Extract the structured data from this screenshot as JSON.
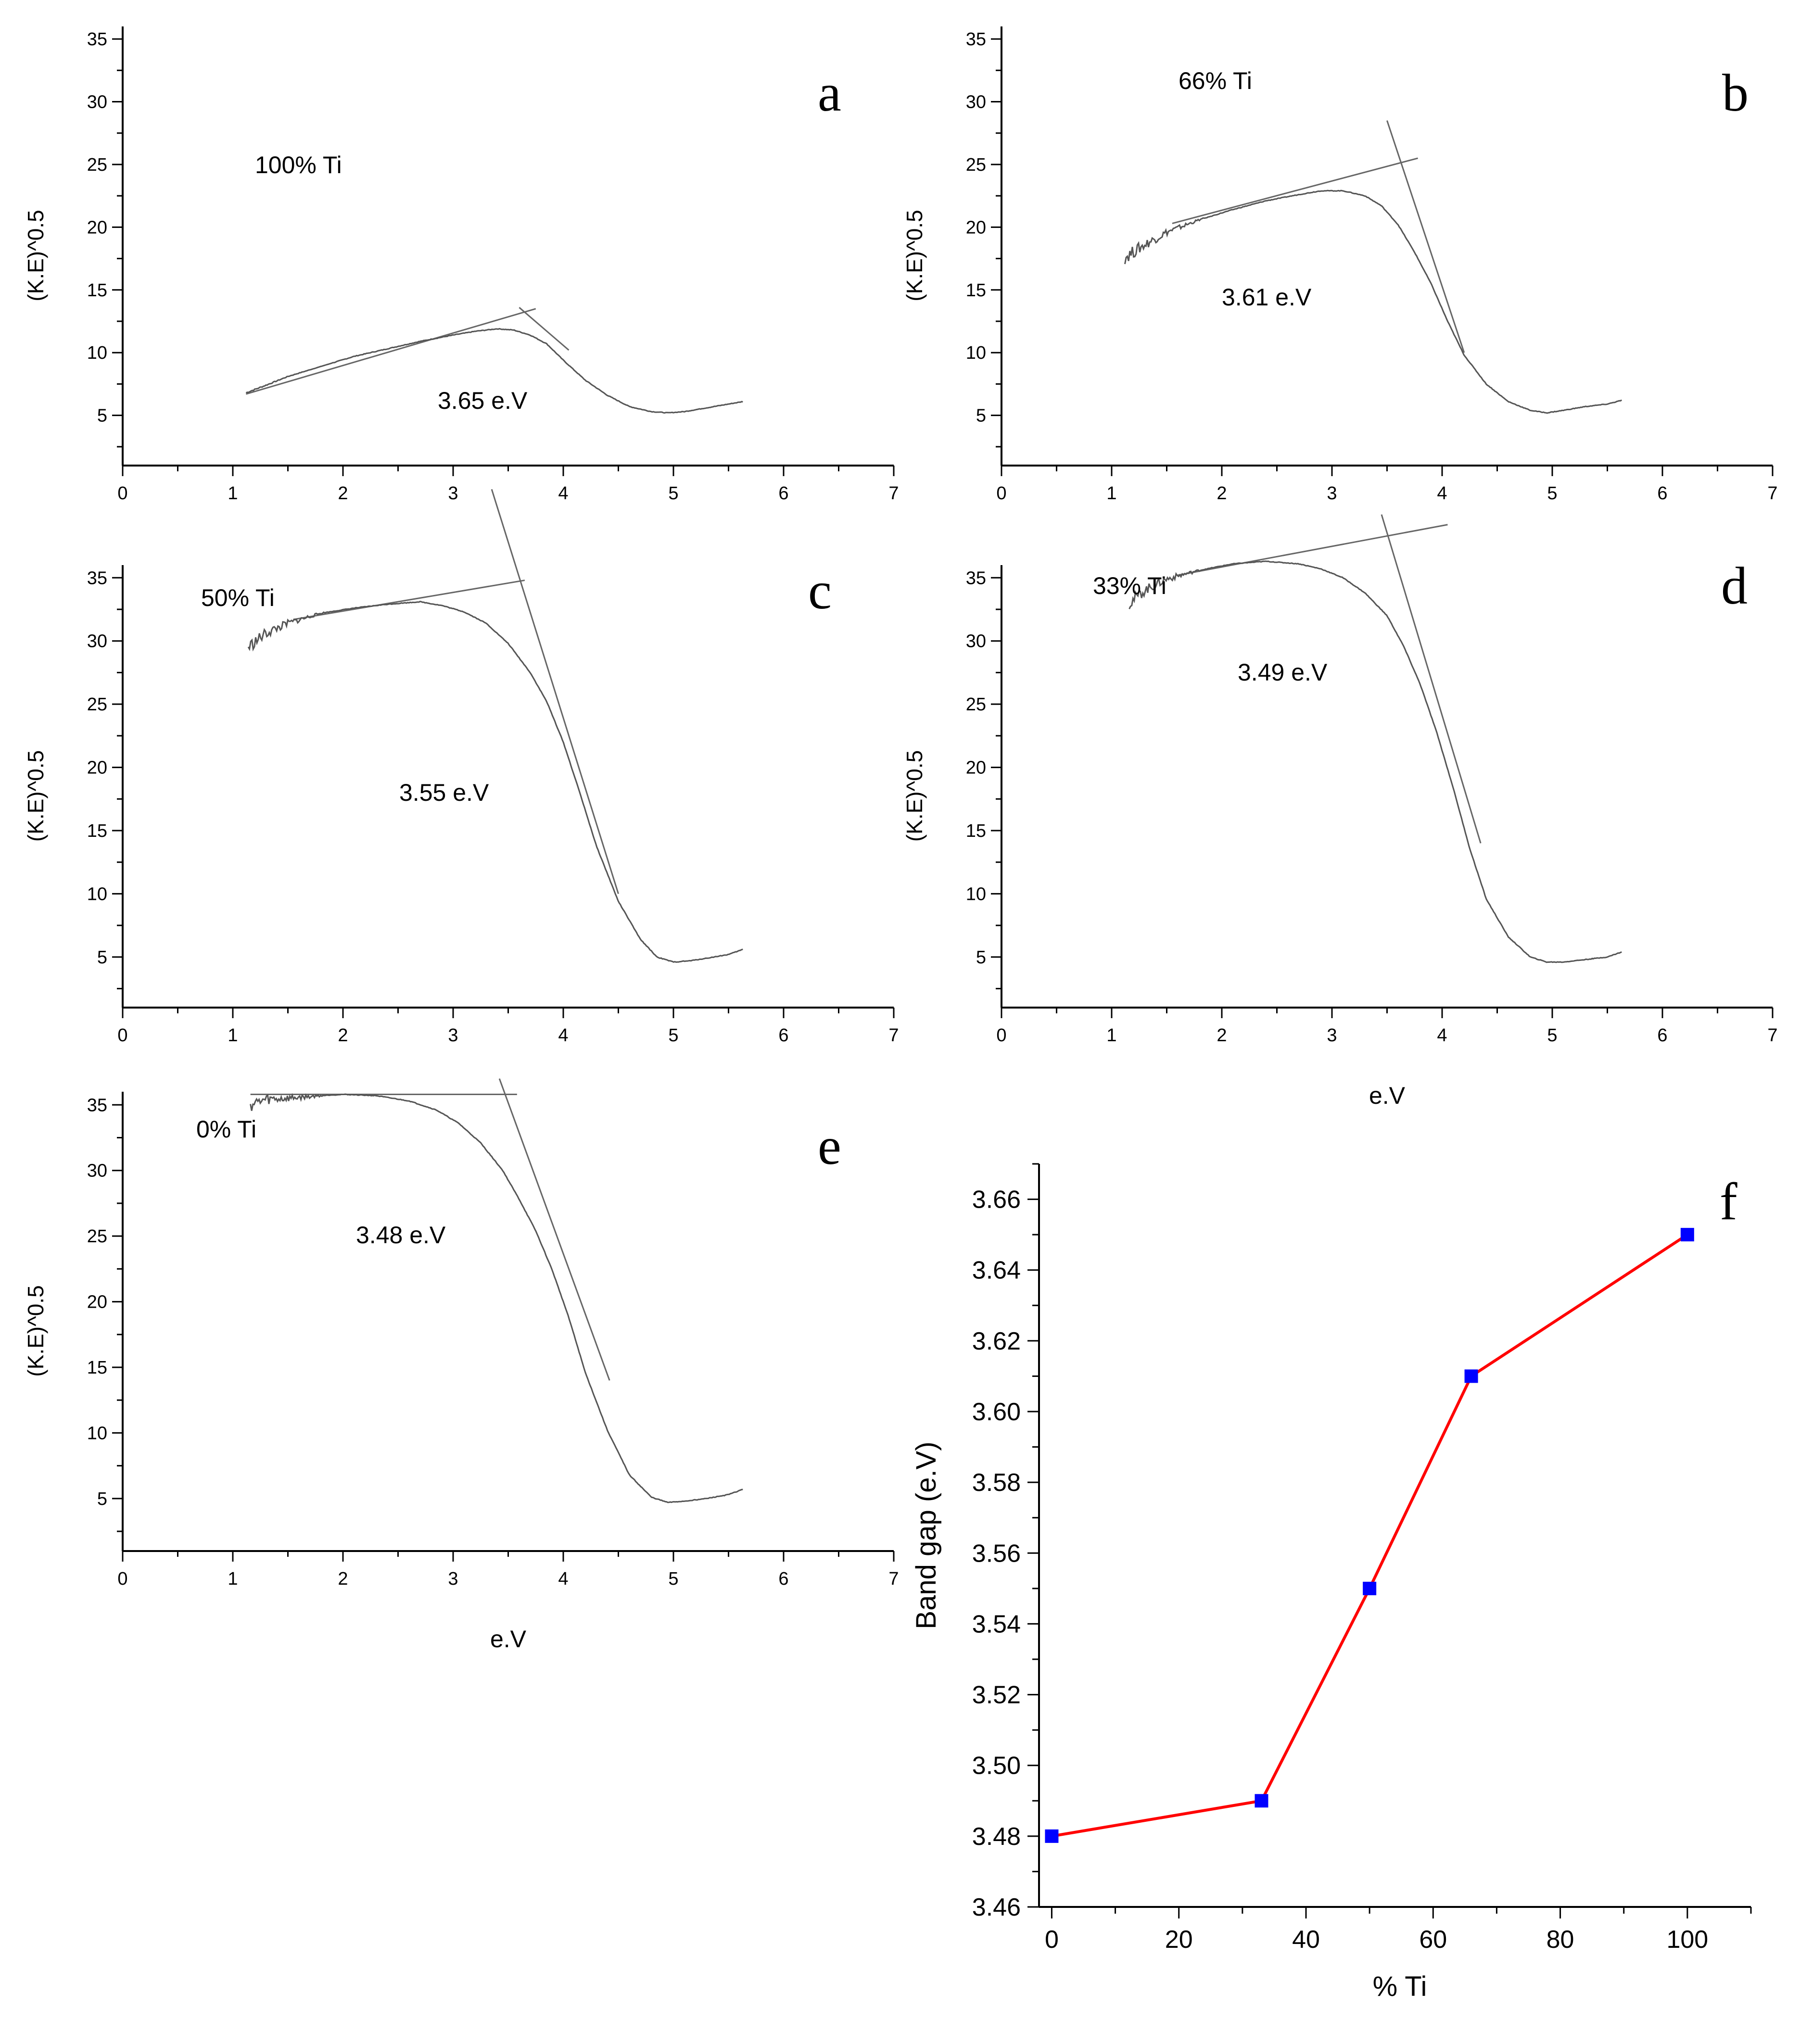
{
  "figure": {
    "panels": [
      "a",
      "b",
      "c",
      "d",
      "e",
      "f"
    ]
  },
  "colors": {
    "axis": "#000000",
    "trace": "#555555",
    "tangent": "#666666",
    "band_line": "#ff0000",
    "band_marker": "#0000ff"
  },
  "chart_data": [
    {
      "id": "a",
      "type": "line",
      "panel_letter": "a",
      "ylabel": "(K.E)^0.5",
      "xlabel": "",
      "xlim": [
        0,
        7
      ],
      "ylim": [
        1,
        36
      ],
      "xticks": [
        "0",
        "1",
        "2",
        "3",
        "4",
        "5",
        "6",
        "7"
      ],
      "yticks": [
        "5",
        "10",
        "15",
        "20",
        "25",
        "30",
        "35"
      ],
      "sample_label": "100% Ti",
      "gap_label": "3.65 e.V",
      "series": [
        {
          "name": "trace",
          "x": [
            1.12,
            1.3,
            1.5,
            1.8,
            2.1,
            2.4,
            2.7,
            3.0,
            3.2,
            3.4,
            3.55,
            3.7,
            3.85,
            4.0,
            4.2,
            4.4,
            4.6,
            4.8,
            4.95,
            5.1,
            5.3,
            5.5,
            5.63
          ],
          "y": [
            6.8,
            7.4,
            8.1,
            8.9,
            9.7,
            10.3,
            10.9,
            11.4,
            11.7,
            11.9,
            11.8,
            11.4,
            10.7,
            9.4,
            7.8,
            6.6,
            5.7,
            5.3,
            5.2,
            5.3,
            5.6,
            5.9,
            6.1
          ]
        }
      ],
      "tangents": [
        {
          "x": [
            1.12,
            3.75
          ],
          "y": [
            6.7,
            13.5
          ]
        },
        {
          "x": [
            3.6,
            4.05
          ],
          "y": [
            13.6,
            10.2
          ]
        }
      ]
    },
    {
      "id": "b",
      "type": "line",
      "panel_letter": "b",
      "ylabel": "(K.E)^0.5",
      "xlabel": "",
      "xlim": [
        0,
        7
      ],
      "ylim": [
        1,
        36
      ],
      "xticks": [
        "0",
        "1",
        "2",
        "3",
        "4",
        "5",
        "6",
        "7"
      ],
      "yticks": [
        "5",
        "10",
        "15",
        "20",
        "25",
        "30",
        "35"
      ],
      "sample_label": "66% Ti",
      "gap_label": "3.61 e.V",
      "series": [
        {
          "name": "trace",
          "x": [
            1.12,
            1.3,
            1.5,
            1.8,
            2.1,
            2.4,
            2.7,
            2.9,
            3.1,
            3.3,
            3.45,
            3.6,
            3.75,
            3.9,
            4.05,
            4.2,
            4.4,
            4.6,
            4.8,
            4.95,
            5.1,
            5.3,
            5.5,
            5.63
          ],
          "y": [
            17.6,
            18.6,
            19.6,
            20.6,
            21.4,
            22.1,
            22.6,
            22.9,
            22.9,
            22.5,
            21.7,
            20.2,
            18.0,
            15.5,
            12.5,
            9.8,
            7.5,
            6.1,
            5.4,
            5.2,
            5.4,
            5.7,
            5.9,
            6.2
          ]
        }
      ],
      "tangents": [
        {
          "x": [
            1.55,
            3.78
          ],
          "y": [
            20.3,
            25.5
          ]
        },
        {
          "x": [
            3.5,
            4.2
          ],
          "y": [
            28.5,
            10.0
          ]
        }
      ]
    },
    {
      "id": "c",
      "type": "line",
      "panel_letter": "c",
      "ylabel": "(K.E)^0.5",
      "xlabel": "",
      "xlim": [
        0,
        7
      ],
      "ylim": [
        1,
        36
      ],
      "xticks": [
        "0",
        "1",
        "2",
        "3",
        "4",
        "5",
        "6",
        "7"
      ],
      "yticks": [
        "5",
        "10",
        "15",
        "20",
        "25",
        "30",
        "35"
      ],
      "sample_label": "50% Ti",
      "gap_label": "3.55 e.V",
      "series": [
        {
          "name": "trace",
          "x": [
            1.14,
            1.3,
            1.5,
            1.8,
            2.1,
            2.4,
            2.7,
            2.9,
            3.1,
            3.3,
            3.5,
            3.7,
            3.85,
            4.0,
            4.15,
            4.3,
            4.5,
            4.7,
            4.85,
            5.0,
            5.15,
            5.3,
            5.5,
            5.63
          ],
          "y": [
            29.5,
            30.6,
            31.4,
            32.2,
            32.6,
            32.9,
            33.1,
            32.8,
            32.3,
            31.4,
            29.8,
            27.5,
            25.2,
            22.0,
            18.0,
            13.8,
            9.4,
            6.4,
            5.0,
            4.6,
            4.7,
            4.9,
            5.2,
            5.6
          ]
        }
      ],
      "tangents": [
        {
          "x": [
            1.55,
            3.65
          ],
          "y": [
            31.7,
            34.8
          ]
        },
        {
          "x": [
            3.35,
            4.5
          ],
          "y": [
            42.0,
            10.0
          ]
        }
      ]
    },
    {
      "id": "d",
      "type": "line",
      "panel_letter": "d",
      "ylabel": "(K.E)^0.5",
      "xlabel": "e.V",
      "xlim": [
        0,
        7
      ],
      "ylim": [
        1,
        36
      ],
      "xticks": [
        "0",
        "1",
        "2",
        "3",
        "4",
        "5",
        "6",
        "7"
      ],
      "yticks": [
        "5",
        "10",
        "15",
        "20",
        "25",
        "30",
        "35"
      ],
      "sample_label": "33% Ti",
      "gap_label": "3.49 e.V",
      "series": [
        {
          "name": "trace",
          "x": [
            1.16,
            1.3,
            1.5,
            1.8,
            2.1,
            2.4,
            2.7,
            2.9,
            3.1,
            3.3,
            3.5,
            3.65,
            3.8,
            3.95,
            4.1,
            4.25,
            4.4,
            4.6,
            4.8,
            4.95,
            5.1,
            5.3,
            5.5,
            5.63
          ],
          "y": [
            33.0,
            34.0,
            34.9,
            35.6,
            36.1,
            36.3,
            36.1,
            35.7,
            35.0,
            33.8,
            32.0,
            29.6,
            26.6,
            22.8,
            18.4,
            13.6,
            9.6,
            6.6,
            5.0,
            4.6,
            4.6,
            4.8,
            5.0,
            5.4
          ]
        }
      ],
      "tangents": [
        {
          "x": [
            1.6,
            4.05
          ],
          "y": [
            35.2,
            39.2
          ]
        },
        {
          "x": [
            3.45,
            4.35
          ],
          "y": [
            40.0,
            14.0
          ]
        }
      ]
    },
    {
      "id": "e",
      "type": "line",
      "panel_letter": "e",
      "ylabel": "(K.E)^0.5",
      "xlabel": "e.V",
      "xlim": [
        0,
        7
      ],
      "ylim": [
        1,
        36
      ],
      "xticks": [
        "0",
        "1",
        "2",
        "3",
        "4",
        "5",
        "6",
        "7"
      ],
      "yticks": [
        "5",
        "10",
        "15",
        "20",
        "25",
        "30",
        "35"
      ],
      "sample_label": "0% Ti",
      "gap_label": "3.48 e.V",
      "series": [
        {
          "name": "trace",
          "x": [
            1.16,
            1.3,
            1.5,
            1.8,
            2.0,
            2.3,
            2.6,
            2.85,
            3.05,
            3.25,
            3.45,
            3.6,
            3.75,
            3.9,
            4.05,
            4.2,
            4.4,
            4.6,
            4.8,
            4.95,
            5.1,
            5.3,
            5.5,
            5.63
          ],
          "y": [
            35.0,
            35.4,
            35.5,
            35.7,
            35.8,
            35.7,
            35.3,
            34.6,
            33.6,
            32.1,
            30.0,
            27.8,
            25.4,
            22.4,
            18.8,
            14.6,
            10.2,
            6.8,
            5.1,
            4.7,
            4.8,
            5.0,
            5.3,
            5.7
          ]
        }
      ],
      "tangents": [
        {
          "x": [
            1.16,
            3.58
          ],
          "y": [
            35.8,
            35.8
          ]
        },
        {
          "x": [
            3.42,
            4.42
          ],
          "y": [
            37.0,
            14.0
          ]
        }
      ]
    },
    {
      "id": "f",
      "type": "line",
      "panel_letter": "f",
      "title": "",
      "xlabel": "% Ti",
      "ylabel": "Band gap (e.V)",
      "xlim": [
        -2,
        110
      ],
      "ylim": [
        3.46,
        3.67
      ],
      "xticks": [
        "0",
        "20",
        "40",
        "60",
        "80",
        "100"
      ],
      "yticks": [
        "3.46",
        "3.48",
        "3.50",
        "3.52",
        "3.54",
        "3.56",
        "3.58",
        "3.60",
        "3.62",
        "3.64",
        "3.66"
      ],
      "x": [
        0,
        33,
        50,
        66,
        100
      ],
      "y": [
        3.48,
        3.49,
        3.55,
        3.61,
        3.65
      ]
    }
  ]
}
